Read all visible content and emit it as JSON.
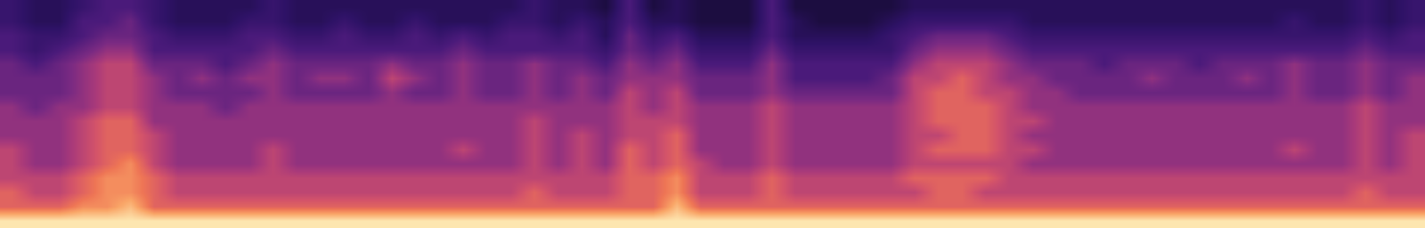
{
  "chart_data": {
    "type": "heatmap",
    "tick_labels": false,
    "zlim": [
      0,
      10
    ],
    "cells": [
      [
        2,
        1,
        1,
        2,
        3,
        3,
        2,
        1,
        1,
        1,
        1,
        2,
        1,
        1,
        1,
        1,
        1,
        1,
        1,
        1,
        1,
        1,
        2,
        1,
        1,
        0,
        3,
        0,
        1,
        0,
        0,
        0,
        3,
        0,
        0,
        0,
        0,
        0,
        1,
        1,
        1,
        1,
        1,
        1,
        1,
        1,
        1,
        1,
        1,
        1,
        1,
        1,
        1,
        1,
        1,
        1,
        1,
        2,
        1,
        2
      ],
      [
        2,
        1,
        1,
        3,
        3,
        4,
        2,
        1,
        1,
        1,
        2,
        2,
        1,
        1,
        2,
        1,
        1,
        2,
        1,
        1,
        1,
        2,
        2,
        1,
        2,
        1,
        3,
        1,
        1,
        0,
        0,
        0,
        3,
        1,
        0,
        0,
        0,
        1,
        2,
        2,
        2,
        2,
        2,
        1,
        1,
        1,
        1,
        1,
        1,
        1,
        1,
        1,
        1,
        1,
        2,
        1,
        1,
        2,
        1,
        2
      ],
      [
        3,
        2,
        2,
        3,
        4,
        4,
        3,
        2,
        2,
        2,
        3,
        3,
        2,
        2,
        3,
        2,
        2,
        3,
        2,
        3,
        2,
        3,
        3,
        2,
        3,
        1,
        4,
        2,
        3,
        1,
        1,
        1,
        3,
        1,
        1,
        1,
        1,
        2,
        3,
        4,
        4,
        4,
        3,
        2,
        2,
        2,
        2,
        2,
        2,
        2,
        2,
        2,
        2,
        2,
        2,
        2,
        2,
        3,
        2,
        3
      ],
      [
        3,
        2,
        3,
        4,
        5,
        5,
        3,
        3,
        3,
        3,
        3,
        4,
        3,
        3,
        3,
        3,
        3,
        3,
        3,
        4,
        3,
        3,
        3,
        3,
        3,
        2,
        4,
        3,
        4,
        2,
        2,
        2,
        4,
        2,
        2,
        2,
        2,
        2,
        4,
        5,
        5,
        5,
        4,
        3,
        3,
        3,
        3,
        3,
        3,
        3,
        3,
        3,
        3,
        3,
        3,
        3,
        3,
        4,
        3,
        3
      ],
      [
        4,
        3,
        4,
        5,
        6,
        6,
        4,
        4,
        4,
        3,
        4,
        5,
        4,
        4,
        4,
        4,
        5,
        4,
        4,
        5,
        4,
        4,
        5,
        4,
        4,
        3,
        5,
        4,
        5,
        3,
        3,
        3,
        5,
        3,
        3,
        3,
        3,
        3,
        5,
        6,
        6,
        6,
        5,
        4,
        4,
        4,
        3,
        4,
        4,
        4,
        3,
        4,
        4,
        4,
        5,
        4,
        4,
        5,
        4,
        4
      ],
      [
        4,
        4,
        4,
        5,
        6,
        6,
        5,
        4,
        5,
        4,
        5,
        5,
        4,
        5,
        5,
        4,
        6,
        5,
        4,
        5,
        4,
        4,
        5,
        4,
        5,
        4,
        5,
        5,
        5,
        4,
        4,
        4,
        5,
        3,
        3,
        3,
        3,
        4,
        6,
        6,
        7,
        6,
        5,
        5,
        4,
        4,
        4,
        4,
        5,
        4,
        4,
        4,
        5,
        4,
        5,
        4,
        4,
        5,
        4,
        5
      ],
      [
        4,
        4,
        4,
        5,
        6,
        6,
        5,
        4,
        4,
        4,
        4,
        5,
        4,
        4,
        4,
        4,
        5,
        4,
        4,
        5,
        4,
        4,
        5,
        4,
        5,
        4,
        6,
        5,
        6,
        4,
        4,
        4,
        5,
        4,
        4,
        4,
        4,
        4,
        6,
        7,
        7,
        6,
        6,
        5,
        5,
        4,
        4,
        4,
        4,
        4,
        4,
        4,
        4,
        4,
        5,
        4,
        4,
        5,
        4,
        5
      ],
      [
        5,
        4,
        5,
        5,
        6,
        6,
        5,
        5,
        5,
        4,
        5,
        5,
        5,
        5,
        5,
        5,
        5,
        5,
        5,
        5,
        5,
        5,
        5,
        5,
        5,
        5,
        6,
        5,
        6,
        5,
        5,
        5,
        6,
        5,
        5,
        5,
        5,
        5,
        6,
        7,
        7,
        7,
        6,
        5,
        5,
        5,
        5,
        5,
        5,
        5,
        5,
        5,
        5,
        5,
        5,
        5,
        5,
        6,
        5,
        5
      ],
      [
        5,
        5,
        5,
        6,
        7,
        7,
        5,
        5,
        5,
        5,
        5,
        5,
        5,
        5,
        5,
        5,
        5,
        5,
        5,
        5,
        5,
        5,
        6,
        5,
        5,
        5,
        6,
        6,
        6,
        5,
        5,
        5,
        6,
        5,
        5,
        5,
        5,
        5,
        6,
        7,
        7,
        7,
        6,
        6,
        5,
        5,
        5,
        5,
        5,
        5,
        5,
        5,
        5,
        5,
        5,
        5,
        5,
        6,
        5,
        5
      ],
      [
        5,
        5,
        5,
        6,
        7,
        7,
        6,
        5,
        5,
        5,
        5,
        5,
        5,
        5,
        5,
        5,
        5,
        5,
        5,
        5,
        5,
        5,
        6,
        5,
        6,
        5,
        6,
        6,
        7,
        5,
        5,
        5,
        6,
        5,
        5,
        5,
        5,
        5,
        6,
        6,
        7,
        7,
        6,
        5,
        5,
        5,
        5,
        5,
        5,
        5,
        5,
        5,
        5,
        5,
        5,
        5,
        5,
        6,
        5,
        6
      ],
      [
        6,
        5,
        5,
        6,
        7,
        7,
        6,
        5,
        5,
        5,
        5,
        6,
        5,
        5,
        5,
        5,
        5,
        5,
        5,
        6,
        5,
        5,
        6,
        5,
        6,
        5,
        7,
        6,
        7,
        5,
        5,
        5,
        6,
        5,
        5,
        5,
        5,
        5,
        6,
        7,
        7,
        7,
        6,
        6,
        5,
        5,
        5,
        5,
        5,
        5,
        5,
        5,
        5,
        5,
        6,
        5,
        5,
        6,
        5,
        6
      ],
      [
        6,
        5,
        5,
        6,
        7,
        8,
        6,
        5,
        5,
        5,
        5,
        6,
        5,
        5,
        5,
        5,
        5,
        5,
        5,
        5,
        5,
        5,
        6,
        5,
        6,
        5,
        7,
        6,
        7,
        6,
        5,
        5,
        6,
        5,
        5,
        5,
        5,
        5,
        6,
        6,
        6,
        6,
        6,
        5,
        5,
        5,
        5,
        5,
        5,
        5,
        5,
        5,
        5,
        5,
        5,
        5,
        5,
        6,
        5,
        6
      ],
      [
        6,
        6,
        6,
        7,
        8,
        8,
        7,
        6,
        6,
        6,
        6,
        6,
        6,
        6,
        6,
        6,
        6,
        6,
        6,
        6,
        6,
        6,
        6,
        6,
        6,
        6,
        7,
        7,
        8,
        6,
        6,
        6,
        7,
        6,
        6,
        6,
        6,
        6,
        7,
        7,
        7,
        7,
        6,
        6,
        6,
        6,
        6,
        6,
        6,
        6,
        6,
        6,
        6,
        6,
        6,
        6,
        6,
        6,
        6,
        6
      ],
      [
        7,
        6,
        6,
        7,
        8,
        8,
        7,
        6,
        6,
        6,
        6,
        6,
        6,
        6,
        6,
        6,
        6,
        6,
        6,
        6,
        6,
        6,
        7,
        6,
        6,
        6,
        7,
        7,
        8,
        6,
        6,
        6,
        7,
        6,
        6,
        6,
        6,
        6,
        6,
        7,
        7,
        6,
        6,
        6,
        6,
        6,
        6,
        6,
        6,
        6,
        6,
        6,
        6,
        6,
        6,
        6,
        6,
        7,
        6,
        6
      ],
      [
        7,
        7,
        7,
        8,
        8,
        9,
        7,
        7,
        7,
        7,
        7,
        7,
        7,
        7,
        7,
        7,
        7,
        7,
        7,
        7,
        7,
        7,
        7,
        7,
        7,
        7,
        7,
        7,
        9,
        7,
        7,
        7,
        7,
        7,
        7,
        7,
        7,
        7,
        7,
        7,
        7,
        7,
        7,
        7,
        7,
        7,
        7,
        7,
        7,
        7,
        7,
        7,
        7,
        7,
        7,
        7,
        7,
        7,
        7,
        7
      ],
      [
        10,
        10,
        10,
        10,
        10,
        10,
        10,
        10,
        10,
        10,
        10,
        10,
        10,
        10,
        10,
        10,
        10,
        10,
        10,
        10,
        10,
        10,
        10,
        10,
        10,
        10,
        10,
        10,
        10,
        10,
        10,
        10,
        10,
        10,
        10,
        10,
        10,
        10,
        10,
        10,
        10,
        10,
        10,
        10,
        10,
        10,
        10,
        10,
        10,
        10,
        10,
        10,
        10,
        10,
        10,
        10,
        10,
        10,
        10,
        10
      ]
    ]
  }
}
